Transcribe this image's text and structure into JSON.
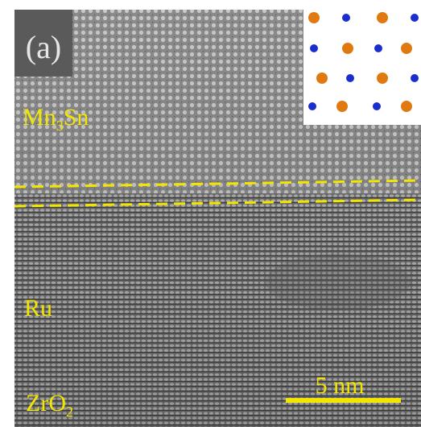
{
  "panel_label": "(a)",
  "layers": {
    "mn3sn": {
      "main": "Mn",
      "sub": "3",
      "tail": "Sn"
    },
    "ru": {
      "main": "Ru"
    },
    "zro2": {
      "main": "ZrO",
      "sub": "2"
    }
  },
  "scale_bar": "5 nm"
}
